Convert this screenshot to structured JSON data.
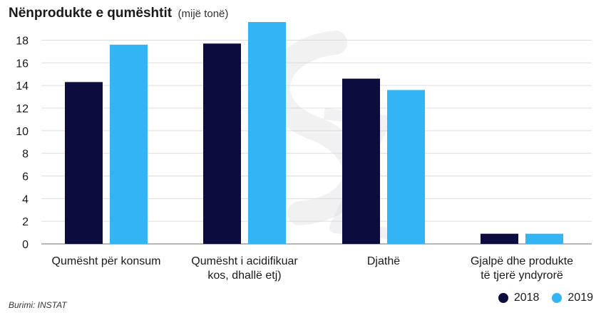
{
  "chart_data": {
    "type": "bar",
    "title": "Nënprodukte e qumështit",
    "unit": "(mijë tonë)",
    "categories": [
      [
        "Qumësht për konsum"
      ],
      [
        "Qumësht i acidifikuar",
        "kos, dhallë etj)"
      ],
      [
        "Djathë"
      ],
      [
        "Gjalpë dhe produkte",
        "të tjerë yndyrorë"
      ]
    ],
    "series": [
      {
        "name": "2018",
        "color": "#0d0c3f",
        "values": [
          14.3,
          17.7,
          14.6,
          0.9
        ]
      },
      {
        "name": "2019",
        "color": "#33b5f5",
        "values": [
          17.6,
          19.6,
          13.6,
          0.9
        ]
      }
    ],
    "yticks": [
      0,
      2,
      4,
      6,
      8,
      10,
      12,
      14,
      16,
      18
    ],
    "ylim": [
      0,
      19.6
    ],
    "grid": true,
    "legend_position": "bottom-right",
    "source": "Burimi: INSTAT"
  }
}
